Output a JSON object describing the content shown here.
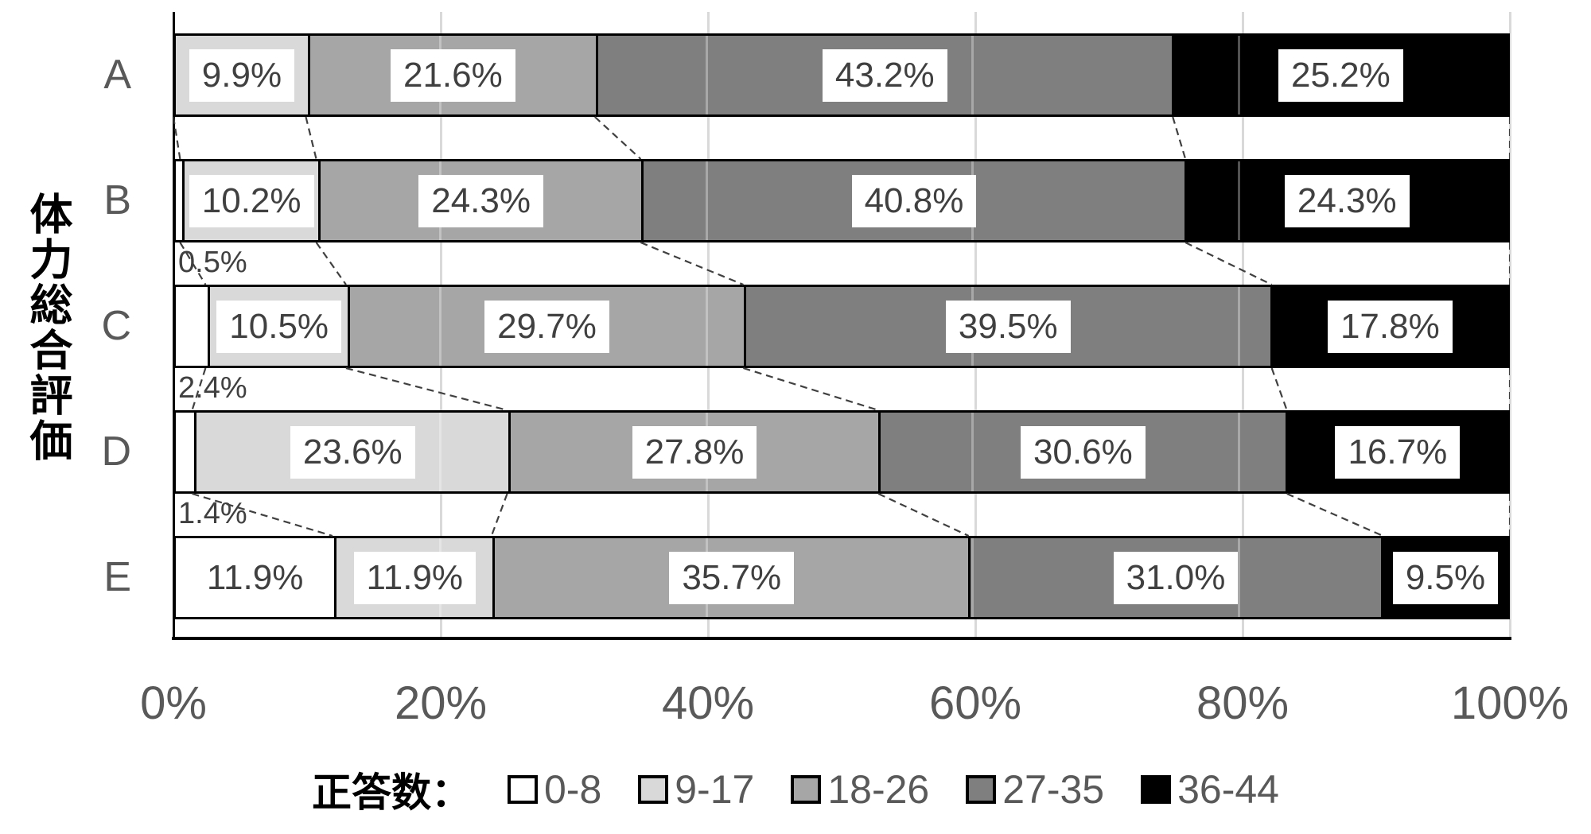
{
  "chart_data": {
    "type": "bar",
    "orientation": "horizontal",
    "stacked_percent": true,
    "title": "",
    "y_axis_title": "体力総合評価",
    "xlabel": "",
    "xlim": [
      0,
      100
    ],
    "x_ticks": [
      "0%",
      "20%",
      "40%",
      "60%",
      "80%",
      "100%"
    ],
    "grid": "vertical lines every 20%",
    "legend_position": "bottom",
    "legend_title": "正答数：",
    "series": [
      {
        "name": "0-8",
        "color": "#ffffff"
      },
      {
        "name": "9-17",
        "color": "#d9d9d9"
      },
      {
        "name": "18-26",
        "color": "#a6a6a6"
      },
      {
        "name": "27-35",
        "color": "#7f7f7f"
      },
      {
        "name": "36-44",
        "color": "#000000"
      }
    ],
    "categories": [
      "A",
      "B",
      "C",
      "D",
      "E"
    ],
    "rows": [
      {
        "category": "A",
        "values": [
          0,
          9.9,
          21.6,
          43.2,
          25.2
        ],
        "segment_labels": [
          "",
          "9.9%",
          "21.6%",
          "43.2%",
          "25.2%"
        ],
        "outside_label": ""
      },
      {
        "category": "B",
        "values": [
          0.5,
          10.2,
          24.3,
          40.8,
          24.3
        ],
        "segment_labels": [
          "",
          "10.2%",
          "24.3%",
          "40.8%",
          "24.3%"
        ],
        "outside_label": "0.5%"
      },
      {
        "category": "C",
        "values": [
          2.4,
          10.5,
          29.7,
          39.5,
          17.8
        ],
        "segment_labels": [
          "",
          "10.5%",
          "29.7%",
          "39.5%",
          "17.8%"
        ],
        "outside_label": "2.4%"
      },
      {
        "category": "D",
        "values": [
          1.4,
          23.6,
          27.8,
          30.6,
          16.7
        ],
        "segment_labels": [
          "",
          "23.6%",
          "27.8%",
          "30.6%",
          "16.7%"
        ],
        "outside_label": "1.4%"
      },
      {
        "category": "E",
        "values": [
          11.9,
          11.9,
          35.7,
          31.0,
          9.5
        ],
        "segment_labels": [
          "11.9%",
          "11.9%",
          "35.7%",
          "31.0%",
          "9.5%"
        ],
        "outside_label": ""
      }
    ],
    "colors": {
      "grid": "#d9d9d9",
      "axis_line": "#000000",
      "tick_text": "#595959",
      "category_text": "#595959",
      "data_label_text": "#404040",
      "data_label_bg": "#ffffff",
      "series_connector_line": "#404040"
    }
  }
}
